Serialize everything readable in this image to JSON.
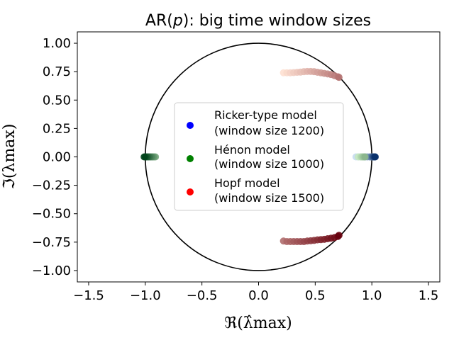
{
  "chart_data": {
    "type": "scatter",
    "title": {
      "pre": "AR(",
      "italic": "p",
      "post": "): big time window sizes"
    },
    "xlabel": "ℜ(λ̂max)",
    "ylabel": "ℑ(λmax)",
    "xlim": [
      -1.6,
      1.6
    ],
    "ylim": [
      -1.1,
      1.1
    ],
    "xticks": [
      -1.5,
      -1.0,
      -0.5,
      0.0,
      0.5,
      1.0,
      1.5
    ],
    "yticks": [
      1.0,
      0.75,
      0.5,
      0.25,
      0.0,
      -0.25,
      -0.5,
      -0.75,
      -1.0
    ],
    "xtick_labels": [
      "−1.5",
      "−1.0",
      "−0.5",
      "0.0",
      "0.5",
      "1.0",
      "1.5"
    ],
    "ytick_labels": [
      "1.00",
      "0.75",
      "0.50",
      "0.25",
      "0.00",
      "−0.25",
      "−0.50",
      "−0.75",
      "−1.00"
    ],
    "unit_circle": {
      "center": [
        0,
        0
      ],
      "radius": 1.0,
      "color": "#000000"
    },
    "grid": false,
    "legend_position": "center",
    "series": [
      {
        "name": "Ricker-type model",
        "name2": "(window size 1200)",
        "legend_color": "#0000ff",
        "gradient": [
          "#c6dbef",
          "#08306b"
        ],
        "points": [
          [
            0.86,
            0.0
          ],
          [
            0.88,
            0.0
          ],
          [
            0.9,
            0.0
          ],
          [
            0.92,
            0.0
          ],
          [
            0.94,
            0.0
          ],
          [
            0.96,
            0.0
          ],
          [
            0.98,
            0.0
          ],
          [
            0.99,
            0.0
          ],
          [
            1.0,
            0.0
          ],
          [
            1.005,
            0.0
          ],
          [
            1.01,
            0.0
          ],
          [
            1.015,
            0.0
          ],
          [
            1.02,
            0.0
          ],
          [
            1.025,
            0.0
          ],
          [
            1.03,
            0.0
          ]
        ]
      },
      {
        "name": "Hénon model",
        "name2": "(window size 1000)",
        "legend_color": "#008000",
        "gradient": [
          "#c7e9c0",
          "#00441b"
        ],
        "points": [
          [
            0.88,
            0.0
          ],
          [
            0.9,
            0.0
          ],
          [
            0.91,
            0.0
          ],
          [
            0.92,
            0.0
          ],
          [
            0.93,
            0.0
          ],
          [
            0.94,
            0.0
          ],
          [
            -0.91,
            0.0
          ],
          [
            -0.92,
            0.0
          ],
          [
            -0.93,
            0.0
          ],
          [
            -0.94,
            0.0
          ],
          [
            -0.95,
            0.0
          ],
          [
            -0.96,
            0.0
          ],
          [
            -0.97,
            0.0
          ],
          [
            -0.98,
            0.0
          ],
          [
            -0.99,
            0.0
          ],
          [
            -1.0,
            0.0
          ],
          [
            -1.01,
            0.0
          ]
        ]
      },
      {
        "name": "Hopf model",
        "name2": "(window size 1500)",
        "legend_color": "#ff0000",
        "gradient": [
          "#fee0d2",
          "#67000d"
        ],
        "points": [
          [
            0.22,
            0.74
          ],
          [
            0.25,
            0.74
          ],
          [
            0.28,
            0.74
          ],
          [
            0.31,
            0.742
          ],
          [
            0.34,
            0.744
          ],
          [
            0.37,
            0.746
          ],
          [
            0.4,
            0.75
          ],
          [
            0.43,
            0.752
          ],
          [
            0.46,
            0.752
          ],
          [
            0.49,
            0.75
          ],
          [
            0.52,
            0.745
          ],
          [
            0.55,
            0.74
          ],
          [
            0.58,
            0.735
          ],
          [
            0.61,
            0.73
          ],
          [
            0.64,
            0.725
          ],
          [
            0.67,
            0.715
          ],
          [
            0.7,
            0.705
          ],
          [
            0.71,
            0.7
          ],
          [
            0.22,
            -0.74
          ],
          [
            0.25,
            -0.745
          ],
          [
            0.28,
            -0.745
          ],
          [
            0.31,
            -0.745
          ],
          [
            0.34,
            -0.745
          ],
          [
            0.37,
            -0.745
          ],
          [
            0.4,
            -0.745
          ],
          [
            0.43,
            -0.74
          ],
          [
            0.46,
            -0.738
          ],
          [
            0.49,
            -0.735
          ],
          [
            0.52,
            -0.73
          ],
          [
            0.55,
            -0.728
          ],
          [
            0.58,
            -0.725
          ],
          [
            0.61,
            -0.72
          ],
          [
            0.64,
            -0.715
          ],
          [
            0.67,
            -0.71
          ],
          [
            0.7,
            -0.7
          ],
          [
            0.71,
            -0.69
          ]
        ]
      }
    ]
  }
}
